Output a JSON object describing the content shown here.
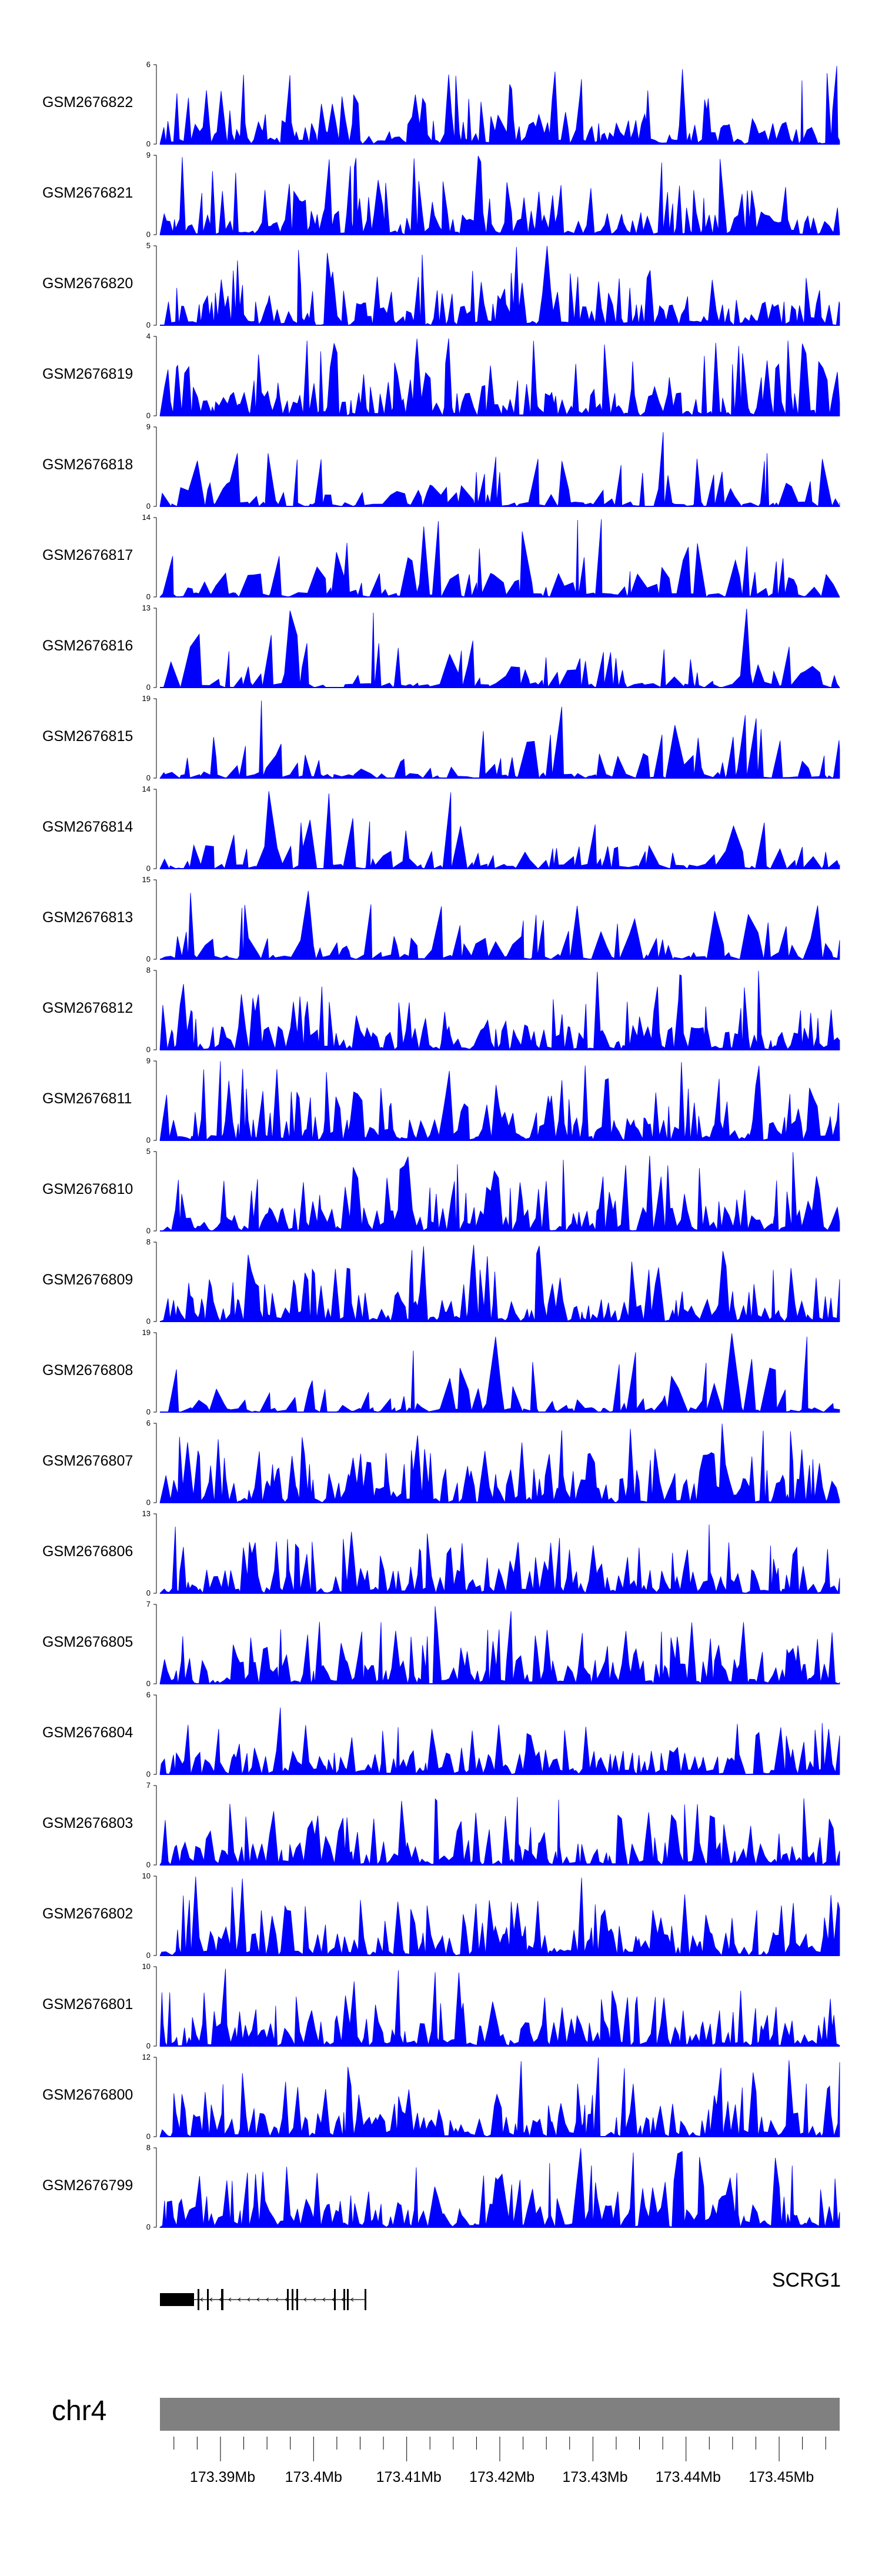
{
  "chart_data": {
    "type": "area",
    "tracks": [
      {
        "sample": "GSM2676822",
        "ymax": 6,
        "ymin": 0
      },
      {
        "sample": "GSM2676821",
        "ymax": 9,
        "ymin": 0
      },
      {
        "sample": "GSM2676820",
        "ymax": 5,
        "ymin": 0
      },
      {
        "sample": "GSM2676819",
        "ymax": 4,
        "ymin": 0
      },
      {
        "sample": "GSM2676818",
        "ymax": 9,
        "ymin": 0
      },
      {
        "sample": "GSM2676817",
        "ymax": 14,
        "ymin": 0
      },
      {
        "sample": "GSM2676816",
        "ymax": 13,
        "ymin": 0
      },
      {
        "sample": "GSM2676815",
        "ymax": 19,
        "ymin": 0
      },
      {
        "sample": "GSM2676814",
        "ymax": 14,
        "ymin": 0
      },
      {
        "sample": "GSM2676813",
        "ymax": 15,
        "ymin": 0
      },
      {
        "sample": "GSM2676812",
        "ymax": 8,
        "ymin": 0
      },
      {
        "sample": "GSM2676811",
        "ymax": 9,
        "ymin": 0
      },
      {
        "sample": "GSM2676810",
        "ymax": 5,
        "ymin": 0
      },
      {
        "sample": "GSM2676809",
        "ymax": 8,
        "ymin": 0
      },
      {
        "sample": "GSM2676808",
        "ymax": 19,
        "ymin": 0
      },
      {
        "sample": "GSM2676807",
        "ymax": 6,
        "ymin": 0
      },
      {
        "sample": "GSM2676806",
        "ymax": 13,
        "ymin": 0
      },
      {
        "sample": "GSM2676805",
        "ymax": 7,
        "ymin": 0
      },
      {
        "sample": "GSM2676804",
        "ymax": 6,
        "ymin": 0
      },
      {
        "sample": "GSM2676803",
        "ymax": 7,
        "ymin": 0
      },
      {
        "sample": "GSM2676802",
        "ymax": 10,
        "ymin": 0
      },
      {
        "sample": "GSM2676801",
        "ymax": 10,
        "ymin": 0
      },
      {
        "sample": "GSM2676800",
        "ymax": 12,
        "ymin": 0
      },
      {
        "sample": "GSM2676799",
        "ymax": 8,
        "ymin": 0
      }
    ],
    "gene": {
      "name": "SCRG1"
    },
    "chromosome": "chr4",
    "xlim": [
      173.3835,
      173.4565
    ],
    "x_ticks": [
      {
        "label": "173.39Mb",
        "value": 173.39
      },
      {
        "label": "173.4Mb",
        "value": 173.4
      },
      {
        "label": "173.41Mb",
        "value": 173.41
      },
      {
        "label": "173.42Mb",
        "value": 173.42
      },
      {
        "label": "173.43Mb",
        "value": 173.43
      },
      {
        "label": "173.44Mb",
        "value": 173.44
      },
      {
        "label": "173.45Mb",
        "value": 173.45
      }
    ],
    "colors": {
      "signal": "#0000ff",
      "ideogram": "#808080",
      "gene": "#000000",
      "axis": "#000000"
    }
  }
}
